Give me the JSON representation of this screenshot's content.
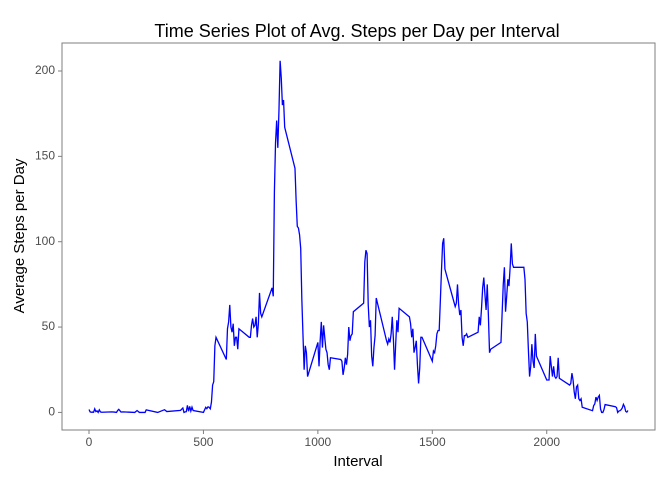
{
  "chart_data": {
    "type": "line",
    "title": "Time Series Plot of Avg. Steps per Day per Interval",
    "x_label": "Interval",
    "y_label": "Average Steps per Day",
    "color": "#0000ff",
    "grid": true,
    "xlim": [
      -118,
      2473
    ],
    "ylim": [
      -10.3,
      216.4
    ],
    "xticks": [
      0,
      500,
      1000,
      1500,
      2000
    ],
    "yticks": [
      0,
      50,
      100,
      150,
      200
    ],
    "x": [
      0,
      5,
      10,
      15,
      20,
      25,
      30,
      35,
      40,
      45,
      50,
      55,
      100,
      110,
      120,
      125,
      130,
      140,
      150,
      200,
      210,
      220,
      230,
      245,
      250,
      300,
      330,
      340,
      400,
      410,
      415,
      420,
      425,
      430,
      435,
      440,
      445,
      450,
      455,
      500,
      510,
      515,
      520,
      525,
      530,
      535,
      540,
      545,
      550,
      555,
      600,
      605,
      610,
      615,
      620,
      625,
      630,
      635,
      640,
      645,
      650,
      655,
      700,
      705,
      710,
      715,
      720,
      725,
      730,
      735,
      740,
      745,
      750,
      755,
      800,
      805,
      810,
      815,
      820,
      825,
      830,
      835,
      840,
      845,
      850,
      855,
      900,
      905,
      910,
      915,
      920,
      925,
      930,
      935,
      940,
      945,
      950,
      955,
      1000,
      1005,
      1010,
      1015,
      1020,
      1025,
      1030,
      1035,
      1040,
      1045,
      1050,
      1055,
      1100,
      1105,
      1110,
      1115,
      1120,
      1125,
      1130,
      1135,
      1140,
      1145,
      1150,
      1155,
      1200,
      1205,
      1210,
      1215,
      1220,
      1225,
      1230,
      1235,
      1240,
      1245,
      1250,
      1255,
      1300,
      1305,
      1310,
      1315,
      1320,
      1325,
      1330,
      1335,
      1340,
      1345,
      1350,
      1355,
      1400,
      1405,
      1410,
      1415,
      1420,
      1425,
      1430,
      1435,
      1440,
      1445,
      1450,
      1455,
      1500,
      1505,
      1510,
      1515,
      1520,
      1525,
      1530,
      1535,
      1540,
      1545,
      1550,
      1555,
      1600,
      1605,
      1610,
      1615,
      1620,
      1625,
      1630,
      1635,
      1640,
      1645,
      1650,
      1655,
      1700,
      1705,
      1710,
      1715,
      1720,
      1725,
      1730,
      1735,
      1740,
      1745,
      1750,
      1755,
      1800,
      1805,
      1810,
      1815,
      1820,
      1825,
      1830,
      1835,
      1840,
      1845,
      1850,
      1855,
      1900,
      1905,
      1910,
      1915,
      1920,
      1925,
      1930,
      1935,
      1940,
      1945,
      1950,
      1955,
      2000,
      2005,
      2010,
      2015,
      2020,
      2025,
      2030,
      2035,
      2040,
      2045,
      2050,
      2055,
      2100,
      2105,
      2110,
      2115,
      2120,
      2125,
      2130,
      2135,
      2140,
      2145,
      2150,
      2155,
      2200,
      2205,
      2210,
      2215,
      2220,
      2225,
      2230,
      2235,
      2240,
      2245,
      2250,
      2255,
      2300,
      2305,
      2310,
      2315,
      2320,
      2325,
      2330,
      2335,
      2340,
      2345,
      2350,
      2355
    ],
    "values": [
      1.7,
      0.3,
      0.1,
      0.2,
      0.1,
      2.1,
      0.5,
      0.9,
      0,
      1.5,
      0.3,
      0.1,
      0.3,
      0.2,
      0,
      1.1,
      1.8,
      0.2,
      0.3,
      0,
      1.1,
      0,
      0,
      0,
      1.5,
      0,
      1.6,
      0.5,
      1.2,
      2.6,
      0,
      0.3,
      0.4,
      4.1,
      0.7,
      3.5,
      0.8,
      3.1,
      1.1,
      0,
      3,
      2.2,
      3.3,
      3,
      2.1,
      6,
      16,
      18,
      39,
      44,
      31,
      49,
      53,
      63,
      50,
      47,
      52,
      39,
      44,
      44,
      37,
      49,
      44,
      44,
      51,
      55,
      50,
      51,
      56,
      44,
      52,
      70,
      58,
      56,
      73,
      68,
      129,
      158,
      171,
      155,
      177,
      206,
      196,
      180,
      183,
      167,
      143,
      124,
      109,
      108,
      104,
      96,
      66,
      45,
      25,
      39,
      35,
      21,
      41,
      27,
      42,
      53,
      38,
      51,
      44,
      37,
      35,
      28,
      25,
      32,
      31,
      30,
      22,
      26,
      32,
      28,
      34,
      50,
      42,
      45,
      46,
      59,
      64,
      88,
      95,
      93,
      63,
      50,
      54,
      33,
      27,
      38,
      45,
      67,
      42,
      40,
      43,
      41,
      46,
      56,
      43,
      25,
      40,
      54,
      47,
      61,
      56,
      52,
      44,
      49,
      35,
      38,
      42,
      28,
      17,
      26,
      44,
      44,
      30,
      36,
      35,
      39,
      46,
      48,
      48,
      65,
      83,
      99,
      102,
      84,
      62,
      64,
      75,
      63,
      57,
      60,
      44,
      39,
      45,
      45,
      46,
      44,
      47,
      56,
      51,
      61,
      73,
      79,
      69,
      60,
      75,
      57,
      35,
      37,
      41,
      58,
      75,
      85,
      59,
      68,
      78,
      74,
      85,
      99,
      87,
      85,
      85,
      78,
      58,
      53,
      36,
      21,
      27,
      40,
      30,
      26,
      46,
      33,
      19,
      19,
      19,
      33,
      27,
      21,
      27,
      21,
      20,
      21,
      32,
      20,
      16,
      17,
      23,
      19,
      12,
      8,
      15,
      16,
      8,
      7,
      8,
      3,
      1,
      4,
      5,
      9,
      7,
      9,
      10,
      2,
      0,
      0,
      1.6,
      4.6,
      3.3,
      2.8,
      0,
      0.8,
      1,
      1.6,
      2.6,
      4.7,
      3.3,
      0.6,
      0.2,
      1.1
    ]
  }
}
